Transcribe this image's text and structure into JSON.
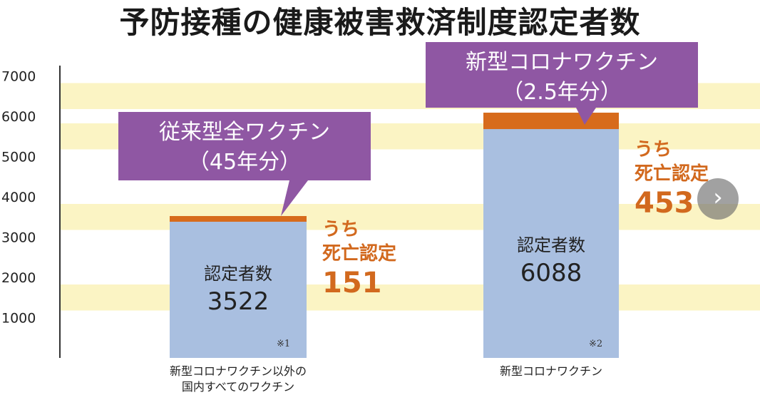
{
  "title": "予防接種の健康被害救済制度認定者数",
  "colors": {
    "stripe_yellow": "#fbf4c4",
    "bar_blue": "#a9bfe0",
    "death_orange": "#d76b1c",
    "callout_purple": "#8f57a3",
    "death_text": "#d2691e"
  },
  "chart_data": {
    "type": "bar",
    "stacked": true,
    "title": "予防接種の健康被害救済制度認定者数",
    "ylim": [
      0,
      7000
    ],
    "yticks": [
      "7000",
      "6000",
      "5000",
      "4000",
      "3000",
      "2000",
      "1000"
    ],
    "yticks_values": [
      7000,
      6000,
      5000,
      4000,
      3000,
      2000,
      1000
    ],
    "categories": [
      "新型コロナワクチン以外の国内すべてのワクチン",
      "新型コロナワクチン"
    ],
    "category_lines": [
      [
        "新型コロナワクチン以外の",
        "国内すべてのワクチン"
      ],
      [
        "新型コロナワクチン"
      ]
    ],
    "series": [
      {
        "name": "認定者数",
        "values": [
          3522,
          6088
        ]
      },
      {
        "name": "うち死亡認定",
        "values": [
          151,
          453
        ]
      }
    ],
    "bars": [
      {
        "count_label": "認定者数",
        "count_value": "3522",
        "death_label_lines": [
          "うち",
          "死亡認定"
        ],
        "death_value": "151",
        "callout_lines": [
          "従来型全ワクチン",
          "（45年分）"
        ],
        "note": "※1"
      },
      {
        "count_label": "認定者数",
        "count_value": "6088",
        "death_label_lines": [
          "うち",
          "死亡認定"
        ],
        "death_value": "453",
        "callout_lines": [
          "新型コロナワクチン",
          "（2.5年分）"
        ],
        "note": "※2"
      }
    ],
    "legend": "none",
    "grid": "alternating horizontal bands"
  },
  "ui": {
    "next_icon": "chevron-right-icon",
    "next_glyph": "›"
  }
}
